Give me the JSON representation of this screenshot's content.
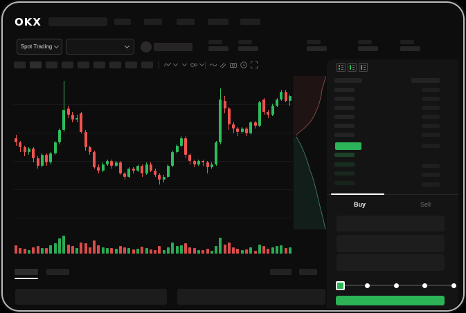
{
  "brand": {
    "logo_text": "OKX"
  },
  "ticker": {
    "market_selector_label": "Spot Trading"
  },
  "order_book": {
    "buy_tab_label": "Buy",
    "sell_tab_label": "Sell",
    "ask_levels": 6,
    "bid_levels": 4,
    "view_toggles": [
      "orderbook-both-icon",
      "orderbook-bids-icon",
      "orderbook-asks-icon"
    ]
  },
  "trade_form": {
    "field_count": 3,
    "slider_stops_percent": [
      0,
      25,
      50,
      75,
      100
    ],
    "slider_selected_percent": 0
  },
  "colors": {
    "up_green": "#2ebd5b",
    "down_red": "#ef5350",
    "accent_green": "#2cb257",
    "bid_row_tints": [
      "rgba(46,189,91,0.28)",
      "rgba(46,189,91,0.16)",
      "rgba(46,189,91,0.12)",
      "rgba(46,189,91,0.10)"
    ],
    "depth_ask_fill": "rgba(200,85,80,0.10)",
    "depth_ask_line": "rgba(210,120,110,0.55)",
    "depth_bid_fill": "rgba(70,190,135,0.10)",
    "depth_bid_line": "rgba(100,195,165,0.55)"
  },
  "chart_data": {
    "type": "candlestick",
    "title": "",
    "xlabel": "",
    "ylabel": "",
    "price_range": [
      0,
      102
    ],
    "grid": "horizontal-faint",
    "gridline_positions_percent": [
      19,
      37,
      55,
      73,
      91
    ],
    "candles_ohlcv": [
      [
        61,
        63,
        56,
        58,
        45
      ],
      [
        58,
        59,
        52,
        55,
        30
      ],
      [
        55,
        56,
        49,
        52,
        25
      ],
      [
        52,
        55,
        50,
        54,
        20
      ],
      [
        54,
        55,
        45,
        48,
        35
      ],
      [
        48,
        49,
        41,
        43,
        40
      ],
      [
        43,
        51,
        42,
        50,
        30
      ],
      [
        50,
        51,
        43,
        45,
        28
      ],
      [
        45,
        52,
        44,
        51,
        45
      ],
      [
        51,
        59,
        50,
        58,
        55
      ],
      [
        58,
        67,
        57,
        66,
        80
      ],
      [
        66,
        98,
        65,
        79,
        95
      ],
      [
        80,
        82,
        74,
        76,
        50
      ],
      [
        76,
        78,
        71,
        73,
        40
      ],
      [
        73,
        76,
        71,
        74,
        30
      ],
      [
        77,
        78,
        64,
        65,
        60
      ],
      [
        65,
        66,
        53,
        55,
        55
      ],
      [
        55,
        56,
        50,
        52,
        35
      ],
      [
        52,
        53,
        41,
        42,
        70
      ],
      [
        42,
        44,
        38,
        40,
        45
      ],
      [
        40,
        45,
        39,
        44,
        35
      ],
      [
        44,
        47,
        43,
        46,
        30
      ],
      [
        46,
        47,
        41,
        43,
        28
      ],
      [
        43,
        46,
        42,
        45,
        25
      ],
      [
        45,
        46,
        37,
        38,
        40
      ],
      [
        38,
        39,
        34,
        36,
        35
      ],
      [
        36,
        42,
        35,
        41,
        30
      ],
      [
        41,
        42,
        38,
        40,
        22
      ],
      [
        40,
        44,
        39,
        43,
        26
      ],
      [
        43,
        44,
        36,
        38,
        38
      ],
      [
        38,
        45,
        37,
        44,
        30
      ],
      [
        44,
        45,
        39,
        40,
        24
      ],
      [
        40,
        41,
        36,
        37,
        20
      ],
      [
        37,
        38,
        31,
        34,
        42
      ],
      [
        34,
        37,
        32,
        36,
        18
      ],
      [
        36,
        44,
        35,
        43,
        35
      ],
      [
        43,
        53,
        42,
        52,
        60
      ],
      [
        52,
        57,
        51,
        56,
        40
      ],
      [
        56,
        62,
        55,
        61,
        45
      ],
      [
        61,
        62,
        48,
        50,
        55
      ],
      [
        50,
        51,
        44,
        46,
        35
      ],
      [
        46,
        47,
        42,
        44,
        30
      ],
      [
        44,
        47,
        43,
        46,
        20
      ],
      [
        46,
        47,
        43,
        45,
        18
      ],
      [
        45,
        46,
        38,
        42,
        25
      ],
      [
        42,
        45,
        41,
        44,
        15
      ],
      [
        44,
        59,
        43,
        58,
        40
      ],
      [
        58,
        93,
        57,
        86,
        85
      ],
      [
        85,
        88,
        77,
        80,
        50
      ],
      [
        80,
        81,
        66,
        70,
        60
      ],
      [
        70,
        71,
        64,
        67,
        35
      ],
      [
        67,
        68,
        62,
        65,
        25
      ],
      [
        65,
        68,
        64,
        67,
        20
      ],
      [
        67,
        68,
        62,
        64,
        22
      ],
      [
        64,
        72,
        63,
        71,
        35
      ],
      [
        71,
        72,
        67,
        69,
        15
      ],
      [
        69,
        85,
        68,
        84,
        50
      ],
      [
        86,
        87,
        76,
        78,
        40
      ],
      [
        78,
        79,
        74,
        76,
        25
      ],
      [
        76,
        83,
        75,
        82,
        35
      ],
      [
        82,
        87,
        81,
        86,
        40
      ],
      [
        86,
        92,
        85,
        91,
        45
      ],
      [
        91,
        92,
        84,
        85,
        30
      ],
      [
        85,
        89,
        82,
        88,
        35
      ]
    ],
    "volume_pane": {
      "max": 100
    },
    "depth": {
      "asks": [
        [
          46,
          0
        ],
        [
          44,
          6
        ],
        [
          42,
          13
        ],
        [
          40,
          20
        ],
        [
          39,
          28
        ],
        [
          37,
          36
        ],
        [
          35,
          43
        ],
        [
          32,
          50
        ],
        [
          29,
          57
        ],
        [
          25,
          64
        ],
        [
          20,
          70
        ],
        [
          14,
          76
        ],
        [
          9,
          80
        ],
        [
          5,
          83
        ],
        [
          3,
          86
        ]
      ],
      "bids": [
        [
          3,
          88
        ],
        [
          5,
          92
        ],
        [
          8,
          97
        ],
        [
          11,
          103
        ],
        [
          14,
          110
        ],
        [
          17,
          118
        ],
        [
          20,
          127
        ],
        [
          23,
          137
        ],
        [
          27,
          148
        ],
        [
          30,
          159
        ],
        [
          33,
          171
        ],
        [
          36,
          184
        ],
        [
          39,
          196
        ],
        [
          42,
          208
        ],
        [
          44,
          217
        ],
        [
          45,
          222
        ]
      ]
    }
  }
}
